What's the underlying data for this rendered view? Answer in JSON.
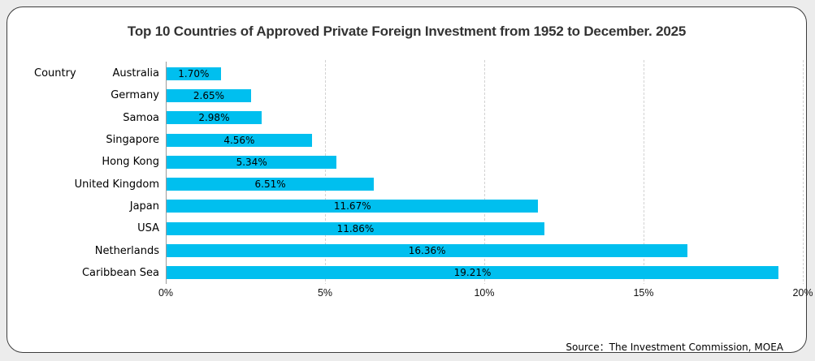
{
  "title": "Top 10 Countries of Approved Private Foreign Investment from 1952 to December. 2025",
  "y_axis_title": "Country",
  "source_note": "Source：The Investment Commission, MOEA",
  "colors": {
    "bar": "#00BFEF",
    "grid": "#D2D2D2",
    "axis": "#9A9A9A",
    "card_border": "#3C3C3C",
    "page_bg": "#ECECEC"
  },
  "chart_data": {
    "type": "bar",
    "orientation": "horizontal",
    "title": "Top 10 Countries of Approved Private Foreign Investment from 1952 to December. 2025",
    "categories": [
      "Australia",
      "Germany",
      "Samoa",
      "Singapore",
      "Hong Kong",
      "United Kingdom",
      "Japan",
      "USA",
      "Netherlands",
      "Caribbean Sea"
    ],
    "values": [
      1.7,
      2.65,
      2.98,
      4.56,
      5.34,
      6.51,
      11.67,
      11.86,
      16.36,
      19.21
    ],
    "value_labels": [
      "1.70%",
      "2.65%",
      "2.98%",
      "4.56%",
      "5.34%",
      "6.51%",
      "11.67%",
      "11.86%",
      "16.36%",
      "19.21%"
    ],
    "unit": "%",
    "xlim": [
      0,
      20
    ],
    "x_tick_values": [
      0,
      5,
      10,
      15,
      20
    ],
    "x_tick_labels": [
      "0%",
      "5%",
      "10%",
      "15%",
      "20%"
    ],
    "ylabel": "Country",
    "grid": true,
    "legend": false,
    "value_label_position": "center-inside-bar"
  }
}
